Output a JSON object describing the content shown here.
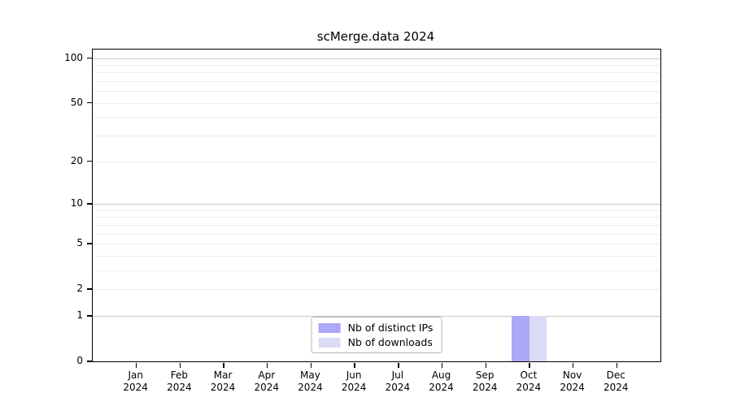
{
  "chart_data": {
    "type": "bar",
    "title": "scMerge.data 2024",
    "categories": [
      "Jan",
      "Feb",
      "Mar",
      "Apr",
      "May",
      "Jun",
      "Jul",
      "Aug",
      "Sep",
      "Oct",
      "Nov",
      "Dec"
    ],
    "category_year": "2024",
    "series": [
      {
        "name": "Nb of distinct IPs",
        "color": "#a9a9f7",
        "values": [
          0,
          0,
          0,
          0,
          0,
          0,
          0,
          0,
          0,
          1,
          0,
          0
        ]
      },
      {
        "name": "Nb of downloads",
        "color": "#dbdbf8",
        "values": [
          0,
          0,
          0,
          0,
          0,
          0,
          0,
          0,
          0,
          1,
          0,
          0
        ]
      }
    ],
    "yscale": "log10(1+x)",
    "ylim": [
      0,
      114
    ],
    "yticks": [
      0,
      1,
      2,
      5,
      10,
      20,
      50,
      100
    ],
    "grid_major": [
      1,
      10,
      100
    ],
    "grid_minor": [
      2,
      3,
      4,
      5,
      6,
      7,
      8,
      9,
      20,
      30,
      40,
      50,
      60,
      70,
      80,
      90
    ],
    "grid": true,
    "legend_position": "bottom-center-inside",
    "colors": {
      "grid_major": "#c7c7c7",
      "grid_minor": "#ececec",
      "axis": "#000000",
      "background": "#ffffff"
    }
  }
}
